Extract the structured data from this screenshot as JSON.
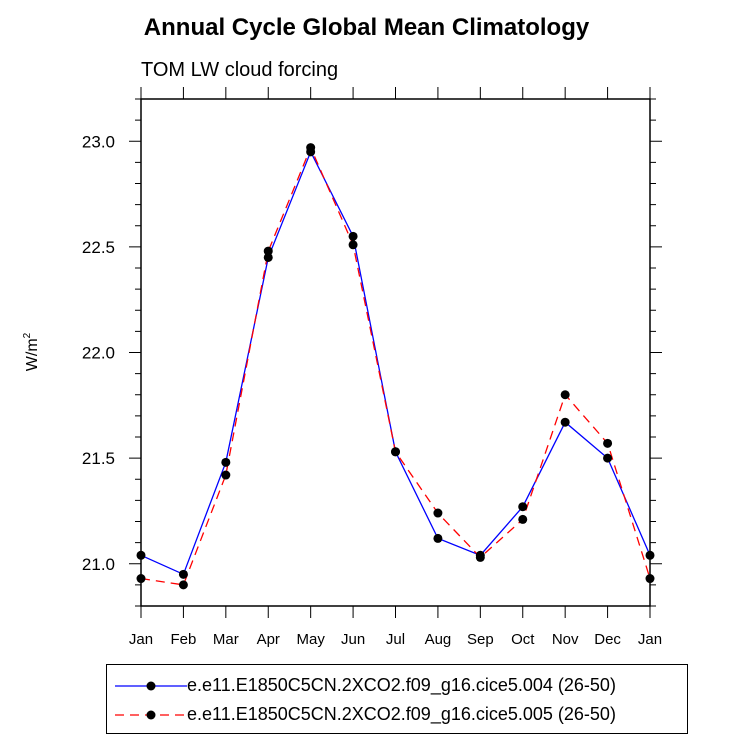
{
  "chart_data": {
    "type": "line",
    "title": "Annual Cycle Global Mean Climatology",
    "subtitle": "TOM LW cloud forcing",
    "xlabel": "",
    "ylabel": "W/m",
    "ylabel_superscript": "2",
    "categories": [
      "Jan",
      "Feb",
      "Mar",
      "Apr",
      "May",
      "Jun",
      "Jul",
      "Aug",
      "Sep",
      "Oct",
      "Nov",
      "Dec",
      "Jan"
    ],
    "ylim": [
      20.8,
      23.2
    ],
    "yticks": [
      21.0,
      21.5,
      22.0,
      22.5,
      23.0
    ],
    "ytick_labels": [
      "21.0",
      "21.5",
      "22.0",
      "22.5",
      "23.0"
    ],
    "series": [
      {
        "name": "e.e11.E1850C5CN.2XCO2.f09_g16.cice5.004 (26-50)",
        "color": "#0000ff",
        "dash": "solid",
        "values": [
          21.04,
          20.95,
          21.48,
          22.45,
          22.95,
          22.55,
          21.53,
          21.12,
          21.04,
          21.27,
          21.67,
          21.5,
          21.04
        ]
      },
      {
        "name": "e.e11.E1850C5CN.2XCO2.f09_g16.cice5.005 (26-50)",
        "color": "#ff0000",
        "dash": "dashed",
        "values": [
          20.93,
          20.9,
          21.42,
          22.48,
          22.97,
          22.51,
          21.53,
          21.24,
          21.03,
          21.21,
          21.8,
          21.57,
          20.93
        ]
      }
    ],
    "legend": "bottom"
  }
}
